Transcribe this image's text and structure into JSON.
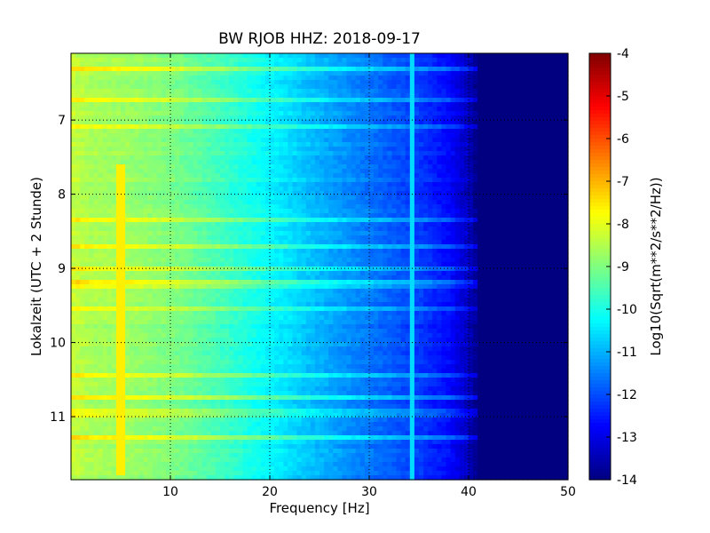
{
  "chart_data": {
    "type": "heatmap",
    "title": "BW RJOB HHZ: 2018-09-17",
    "xlabel": "Frequency [Hz]",
    "ylabel": "Lokalzeit (UTC + 2 Stunde)",
    "xlim": [
      0,
      50
    ],
    "ylim": [
      6.1,
      11.85
    ],
    "y_inverted": true,
    "x_ticks": [
      "10",
      "20",
      "30",
      "40",
      "50"
    ],
    "y_ticks": [
      "7",
      "8",
      "9",
      "10",
      "11"
    ],
    "grid": "dotted",
    "colormap": "jet",
    "colorbar": {
      "label": "Log10(Sqrt(m**2/s**2/Hz))",
      "range": [
        -14,
        -4
      ],
      "ticks": [
        "-4",
        "-5",
        "-6",
        "-7",
        "-8",
        "-9",
        "-10",
        "-11",
        "-12",
        "-13",
        "-14"
      ]
    },
    "spectral_profile": {
      "frequency_hz": [
        0,
        2,
        5,
        10,
        15,
        20,
        25,
        30,
        35,
        38,
        40,
        41,
        42,
        50
      ],
      "log10_amplitude": [
        -8.3,
        -8.6,
        -8.7,
        -9.0,
        -9.6,
        -10.3,
        -11.0,
        -11.6,
        -12.2,
        -12.7,
        -13.4,
        -14,
        -14,
        -14
      ]
    },
    "features": [
      {
        "kind": "narrowband line",
        "frequency_hz": 5.0,
        "hours": [
          7.6,
          11.8
        ],
        "log10_amplitude": -7.6
      },
      {
        "kind": "drifting tone",
        "frequency_hz": 34.3,
        "hours": [
          6.1,
          11.85
        ],
        "log10_amplitude": -10.6
      }
    ]
  }
}
